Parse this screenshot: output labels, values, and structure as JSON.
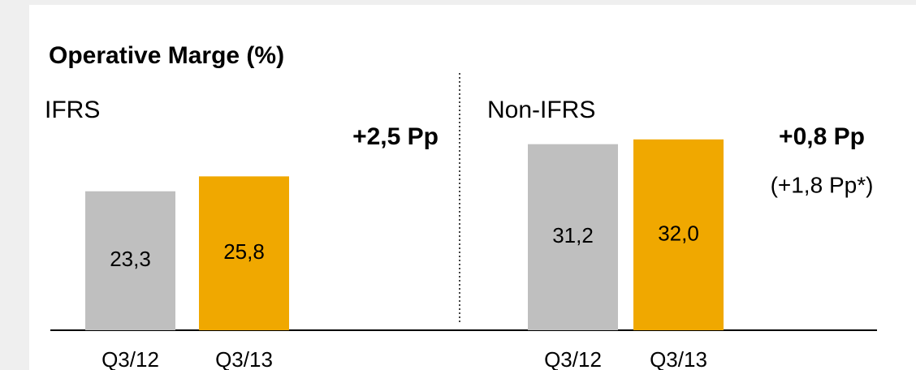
{
  "title": "Operative Marge (%)",
  "chart_data": [
    {
      "type": "bar",
      "subtitle": "IFRS",
      "categories": [
        "Q3/12",
        "Q3/13"
      ],
      "values": [
        23.3,
        25.8
      ],
      "value_labels": [
        "23,3",
        "25,8"
      ],
      "colors": [
        "#bfbfbf",
        "#f0a800"
      ],
      "annotations": [
        "+2,5 Pp"
      ]
    },
    {
      "type": "bar",
      "subtitle": "Non-IFRS",
      "categories": [
        "Q3/12",
        "Q3/13"
      ],
      "values": [
        31.2,
        32.0
      ],
      "value_labels": [
        "31,2",
        "32,0"
      ],
      "colors": [
        "#bfbfbf",
        "#f0a800"
      ],
      "annotations": [
        "+0,8 Pp",
        "(+1,8 Pp*)"
      ]
    }
  ]
}
